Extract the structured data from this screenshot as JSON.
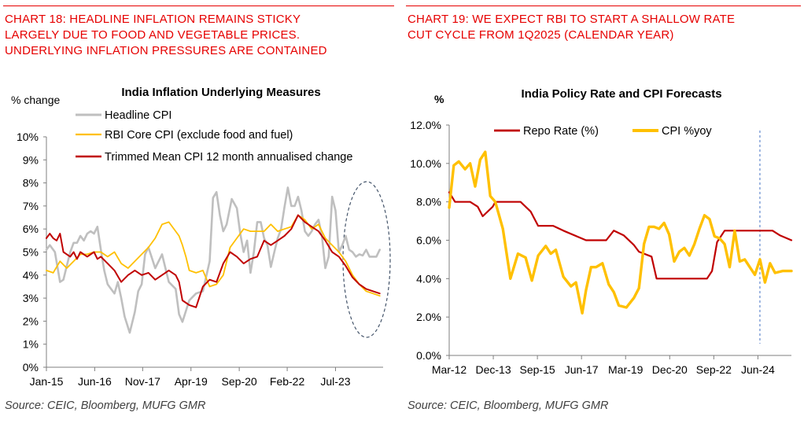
{
  "left": {
    "heading_lines": [
      "CHART 18: HEADLINE INFLATION REMAINS STICKY",
      "LARGELY DUE TO FOOD AND VEGETABLE PRICES.",
      "UNDERLYING INFLATION PRESSURES ARE CONTAINED"
    ],
    "source": "Source: CEIC, Bloomberg, MUFG GMR"
  },
  "right": {
    "heading_lines": [
      "CHART 19: WE EXPECT RBI TO START A SHALLOW RATE",
      "CUT CYCLE FROM 1Q2025 (CALENDAR YEAR)"
    ],
    "source": "Source: CEIC, Bloomberg, MUFG GMR"
  },
  "colors": {
    "heading_red": "#e60000",
    "headline_grey": "#bfbfbf",
    "core_yellow": "#ffc000",
    "trimmed_red": "#c00000",
    "ellipse_blue": "#44546a"
  },
  "chart_data": [
    {
      "type": "line",
      "title": "India Inflation Underlying Measures",
      "ylabel": "% change",
      "ylim": [
        0,
        10
      ],
      "y_ticks": [
        "0%",
        "1%",
        "2%",
        "3%",
        "4%",
        "5%",
        "6%",
        "7%",
        "8%",
        "9%",
        "10%"
      ],
      "x_tick_labels": [
        "Jan-15",
        "Jun-16",
        "Nov-17",
        "Apr-19",
        "Sep-20",
        "Feb-22",
        "Jul-23"
      ],
      "x_tick_values": [
        2015.0,
        2016.42,
        2017.83,
        2019.25,
        2020.67,
        2022.08,
        2023.5
      ],
      "xlim": [
        2015.0,
        2024.9
      ],
      "legend_position": "top",
      "annotation": "dashed ellipse around latest data",
      "series": [
        {
          "name": "Headline CPI",
          "color": "#bfbfbf",
          "x": [
            2015.0,
            2015.1,
            2015.25,
            2015.4,
            2015.5,
            2015.6,
            2015.7,
            2015.8,
            2015.9,
            2016.0,
            2016.1,
            2016.2,
            2016.3,
            2016.4,
            2016.5,
            2016.6,
            2016.7,
            2016.8,
            2016.9,
            2017.0,
            2017.1,
            2017.2,
            2017.3,
            2017.45,
            2017.6,
            2017.7,
            2017.8,
            2017.9,
            2018.0,
            2018.2,
            2018.4,
            2018.6,
            2018.8,
            2018.9,
            2019.0,
            2019.2,
            2019.4,
            2019.6,
            2019.8,
            2019.9,
            2020.0,
            2020.1,
            2020.2,
            2020.3,
            2020.45,
            2020.6,
            2020.7,
            2020.8,
            2020.9,
            2021.0,
            2021.1,
            2021.2,
            2021.3,
            2021.4,
            2021.5,
            2021.6,
            2021.7,
            2021.8,
            2021.9,
            2022.0,
            2022.1,
            2022.2,
            2022.3,
            2022.4,
            2022.5,
            2022.6,
            2022.7,
            2022.8,
            2022.9,
            2023.0,
            2023.1,
            2023.2,
            2023.3,
            2023.4,
            2023.5,
            2023.6,
            2023.7,
            2023.8,
            2023.9,
            2024.0,
            2024.1,
            2024.2,
            2024.3,
            2024.4,
            2024.5,
            2024.6,
            2024.7,
            2024.8
          ],
          "values": [
            5.1,
            5.3,
            5.0,
            3.7,
            3.8,
            4.4,
            5.0,
            5.4,
            5.4,
            5.7,
            5.5,
            5.8,
            5.9,
            5.8,
            6.1,
            5.1,
            4.2,
            3.6,
            3.4,
            3.2,
            3.7,
            3.0,
            2.2,
            1.5,
            2.4,
            3.3,
            3.6,
            4.9,
            5.2,
            4.3,
            4.9,
            3.7,
            3.4,
            2.3,
            1.97,
            2.9,
            3.2,
            3.3,
            4.6,
            7.35,
            7.6,
            6.6,
            5.9,
            6.2,
            7.3,
            6.9,
            5.8,
            5.0,
            5.5,
            4.1,
            5.0,
            6.3,
            6.3,
            5.6,
            5.3,
            4.35,
            5.0,
            5.6,
            6.0,
            6.95,
            7.8,
            7.0,
            7.0,
            7.4,
            6.8,
            5.9,
            5.7,
            5.9,
            6.2,
            6.4,
            5.7,
            4.3,
            4.8,
            7.4,
            6.8,
            5.0,
            5.3,
            5.7,
            5.1,
            5.0,
            4.8,
            4.9,
            4.85,
            5.1,
            4.8,
            4.8,
            4.8,
            5.1
          ]
        },
        {
          "name": "RBI Core CPI (exclude food and fuel)",
          "color": "#ffc000",
          "x": [
            2015.0,
            2015.2,
            2015.4,
            2015.6,
            2015.8,
            2016.0,
            2016.2,
            2016.4,
            2016.6,
            2016.8,
            2017.0,
            2017.2,
            2017.4,
            2017.6,
            2017.8,
            2018.0,
            2018.2,
            2018.4,
            2018.6,
            2018.8,
            2018.9,
            2019.0,
            2019.1,
            2019.2,
            2019.4,
            2019.6,
            2019.8,
            2020.0,
            2020.2,
            2020.4,
            2020.6,
            2020.8,
            2021.0,
            2021.2,
            2021.4,
            2021.6,
            2021.8,
            2022.0,
            2022.2,
            2022.4,
            2022.6,
            2022.8,
            2023.0,
            2023.2,
            2023.4,
            2023.6,
            2023.8,
            2024.0,
            2024.2,
            2024.4,
            2024.6,
            2024.8
          ],
          "values": [
            4.2,
            4.1,
            4.6,
            4.3,
            4.6,
            4.9,
            4.9,
            5.0,
            5.0,
            4.8,
            5.0,
            4.5,
            4.3,
            4.6,
            4.9,
            5.2,
            5.6,
            6.2,
            6.3,
            5.9,
            5.7,
            5.3,
            4.8,
            4.2,
            4.1,
            4.2,
            3.5,
            3.6,
            4.0,
            5.2,
            5.6,
            6.0,
            5.9,
            5.9,
            5.9,
            6.2,
            5.9,
            6.0,
            6.1,
            6.6,
            6.4,
            6.0,
            6.2,
            5.6,
            5.3,
            5.0,
            4.6,
            4.0,
            3.6,
            3.3,
            3.2,
            3.1
          ]
        },
        {
          "name": "Trimmed Mean CPI 12 month annualised change",
          "color": "#c00000",
          "x": [
            2015.0,
            2015.1,
            2015.2,
            2015.3,
            2015.4,
            2015.5,
            2015.6,
            2015.7,
            2015.8,
            2015.9,
            2016.0,
            2016.2,
            2016.4,
            2016.5,
            2016.6,
            2016.8,
            2017.0,
            2017.2,
            2017.4,
            2017.6,
            2017.8,
            2018.0,
            2018.2,
            2018.4,
            2018.6,
            2018.8,
            2018.9,
            2019.0,
            2019.1,
            2019.2,
            2019.4,
            2019.6,
            2019.8,
            2020.0,
            2020.2,
            2020.4,
            2020.6,
            2020.8,
            2021.0,
            2021.2,
            2021.4,
            2021.6,
            2021.8,
            2022.0,
            2022.2,
            2022.4,
            2022.6,
            2022.8,
            2023.0,
            2023.2,
            2023.4,
            2023.6,
            2023.8,
            2024.0,
            2024.2,
            2024.4,
            2024.6,
            2024.8
          ],
          "values": [
            5.6,
            5.8,
            5.6,
            5.5,
            5.8,
            5.0,
            4.9,
            4.8,
            5.0,
            4.7,
            5.0,
            4.8,
            5.0,
            4.7,
            4.8,
            4.5,
            4.2,
            3.7,
            4.0,
            4.2,
            4.0,
            4.1,
            3.8,
            4.0,
            4.2,
            4.0,
            3.7,
            2.9,
            2.8,
            2.7,
            2.6,
            3.5,
            3.8,
            3.7,
            4.5,
            5.0,
            4.8,
            4.5,
            4.7,
            4.8,
            5.5,
            5.3,
            5.5,
            5.7,
            6.0,
            6.6,
            6.3,
            6.1,
            5.9,
            5.5,
            5.0,
            4.8,
            4.4,
            3.9,
            3.6,
            3.4,
            3.3,
            3.2
          ]
        }
      ]
    },
    {
      "type": "line",
      "title": "India Policy Rate and CPI Forecasts",
      "ylabel": "%",
      "ylim": [
        0,
        12
      ],
      "y_ticks": [
        "0.0%",
        "2.0%",
        "4.0%",
        "6.0%",
        "8.0%",
        "10.0%",
        "12.0%"
      ],
      "x_tick_labels": [
        "Mar-12",
        "Dec-13",
        "Sep-15",
        "Jun-17",
        "Mar-19",
        "Dec-20",
        "Sep-22",
        "Jun-24"
      ],
      "x_tick_values": [
        2012.17,
        2013.92,
        2015.67,
        2017.42,
        2019.17,
        2020.92,
        2022.67,
        2024.42
      ],
      "xlim": [
        2012.17,
        2025.75
      ],
      "legend_position": "top",
      "annotation": "dashed vertical forecast line at 2024.5",
      "forecast_line_x": 2024.5,
      "series": [
        {
          "name": "Repo Rate (%)",
          "color": "#c00000",
          "x": [
            2012.17,
            2012.4,
            2013.0,
            2013.3,
            2013.5,
            2013.9,
            2014.0,
            2015.0,
            2015.2,
            2015.4,
            2015.7,
            2016.3,
            2016.7,
            2017.6,
            2018.4,
            2018.7,
            2019.1,
            2019.5,
            2019.7,
            2020.2,
            2020.4,
            2022.4,
            2022.6,
            2022.8,
            2023.1,
            2025.0,
            2025.3,
            2025.75
          ],
          "values": [
            8.5,
            8.0,
            8.0,
            7.75,
            7.25,
            7.75,
            8.0,
            8.0,
            7.75,
            7.5,
            6.75,
            6.75,
            6.5,
            6.0,
            6.0,
            6.5,
            6.25,
            5.75,
            5.4,
            5.15,
            4.0,
            4.0,
            4.4,
            5.9,
            6.5,
            6.5,
            6.25,
            6.0
          ]
        },
        {
          "name": "CPI %yoy",
          "color": "#ffc000",
          "x": [
            2012.17,
            2012.35,
            2012.55,
            2012.8,
            2013.0,
            2013.2,
            2013.4,
            2013.6,
            2013.8,
            2014.0,
            2014.3,
            2014.6,
            2014.9,
            2015.2,
            2015.45,
            2015.7,
            2016.0,
            2016.2,
            2016.4,
            2016.7,
            2017.0,
            2017.2,
            2017.45,
            2017.6,
            2017.8,
            2018.0,
            2018.25,
            2018.5,
            2018.7,
            2018.9,
            2019.2,
            2019.5,
            2019.7,
            2019.9,
            2020.1,
            2020.3,
            2020.5,
            2020.7,
            2020.9,
            2021.1,
            2021.3,
            2021.5,
            2021.7,
            2021.9,
            2022.1,
            2022.3,
            2022.5,
            2022.7,
            2022.9,
            2023.1,
            2023.3,
            2023.5,
            2023.7,
            2023.9,
            2024.1,
            2024.3,
            2024.5,
            2024.7,
            2024.9,
            2025.1,
            2025.4,
            2025.75
          ],
          "values": [
            7.7,
            9.9,
            10.1,
            9.7,
            10.0,
            8.8,
            10.2,
            10.6,
            8.3,
            8.0,
            6.6,
            4.0,
            5.3,
            5.1,
            3.9,
            5.2,
            5.7,
            5.3,
            5.5,
            4.1,
            3.6,
            3.8,
            2.2,
            3.4,
            4.6,
            4.6,
            4.8,
            3.7,
            3.3,
            2.6,
            2.5,
            3.0,
            3.5,
            5.8,
            6.7,
            6.7,
            6.6,
            6.9,
            6.3,
            4.9,
            5.4,
            5.6,
            5.2,
            5.8,
            6.6,
            7.3,
            7.1,
            6.2,
            6.1,
            5.8,
            4.6,
            6.5,
            4.9,
            5.0,
            4.6,
            4.2,
            5.0,
            3.8,
            4.8,
            4.3,
            4.4,
            4.4
          ]
        }
      ]
    }
  ]
}
